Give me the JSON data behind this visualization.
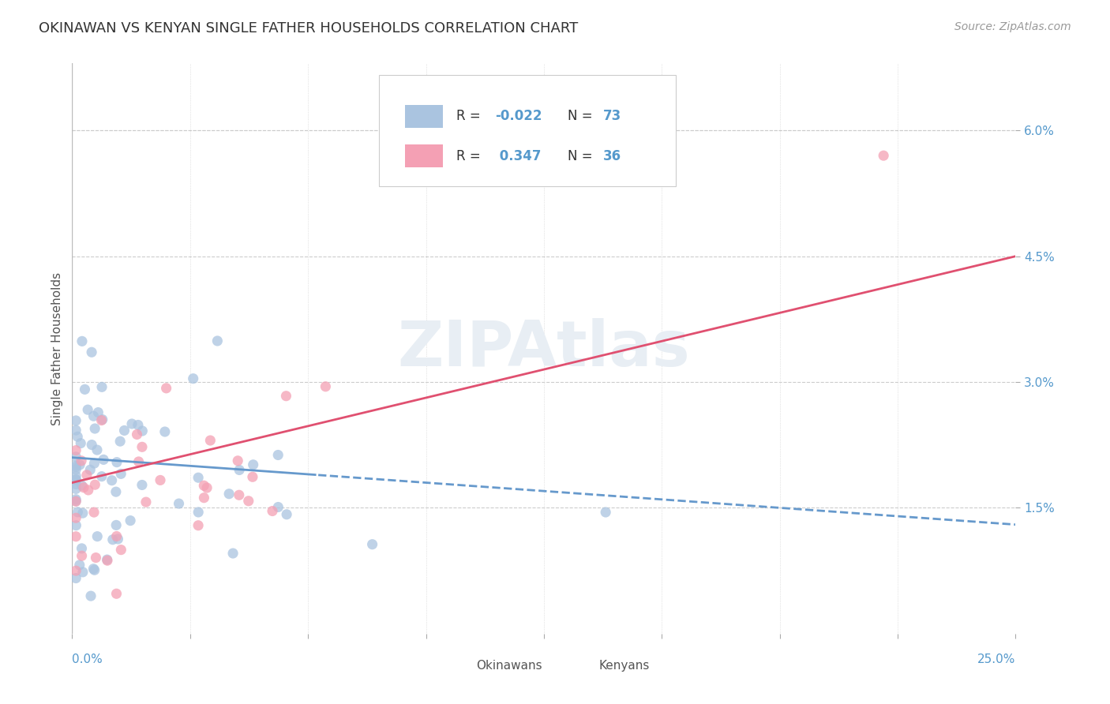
{
  "title": "OKINAWAN VS KENYAN SINGLE FATHER HOUSEHOLDS CORRELATION CHART",
  "source": "Source: ZipAtlas.com",
  "ylabel": "Single Father Households",
  "ytick_labels": [
    "1.5%",
    "3.0%",
    "4.5%",
    "6.0%"
  ],
  "ytick_values": [
    0.015,
    0.03,
    0.045,
    0.06
  ],
  "xlim": [
    0.0,
    0.25
  ],
  "ylim": [
    0.0,
    0.068
  ],
  "legend_r_okinawan": "-0.022",
  "legend_n_okinawan": "73",
  "legend_r_kenyan": "0.347",
  "legend_n_kenyan": "36",
  "okinawan_color": "#aac4e0",
  "kenyan_color": "#f4a0b4",
  "okinawan_line_color": "#6699cc",
  "kenyan_line_color": "#e05070",
  "background_color": "#ffffff",
  "watermark_color": "#e8eef4",
  "grid_color": "#cccccc",
  "label_color": "#5599cc",
  "text_color": "#555555"
}
